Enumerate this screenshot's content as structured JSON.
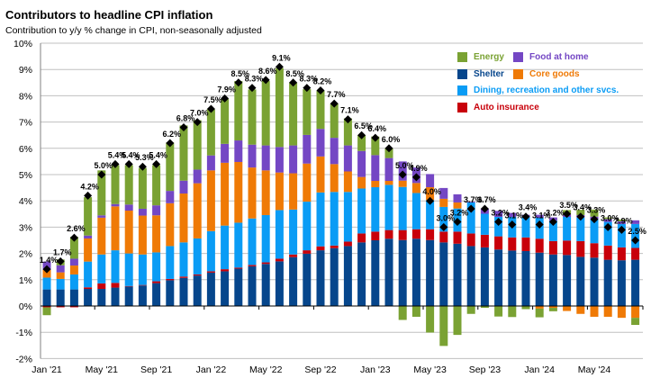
{
  "chart_data": {
    "type": "bar",
    "stacked": true,
    "title": "Contributors to headline CPI inflation",
    "subtitle": "Contribution to y/y % change in CPI, non-seasonally adjusted",
    "ylim": [
      -2,
      10
    ],
    "yticks": [
      "-2%",
      "-1%",
      "0%",
      "1%",
      "2%",
      "3%",
      "4%",
      "5%",
      "6%",
      "7%",
      "8%",
      "9%",
      "10%"
    ],
    "grid": true,
    "legend_position": "top-right",
    "x_tick_labels": [
      "Jan '21",
      "May '21",
      "Sep '21",
      "Jan '22",
      "May '22",
      "Sep '22",
      "Jan '23",
      "May '23",
      "Sep '23",
      "Jan '24",
      "May '24"
    ],
    "categories": [
      "Jan '21",
      "Feb '21",
      "Mar '21",
      "Apr '21",
      "May '21",
      "Jun '21",
      "Jul '21",
      "Aug '21",
      "Sep '21",
      "Oct '21",
      "Nov '21",
      "Dec '21",
      "Jan '22",
      "Feb '22",
      "Mar '22",
      "Apr '22",
      "May '22",
      "Jun '22",
      "Jul '22",
      "Aug '22",
      "Sep '22",
      "Oct '22",
      "Nov '22",
      "Dec '22",
      "Jan '23",
      "Feb '23",
      "Mar '23",
      "Apr '23",
      "May '23",
      "Jun '23",
      "Jul '23",
      "Aug '23",
      "Sep '23",
      "Oct '23",
      "Nov '23",
      "Dec '23",
      "Jan '24",
      "Feb '24",
      "Mar '24",
      "Apr '24",
      "May '24",
      "Jun '24",
      "Jul '24",
      "Aug '24"
    ],
    "series": [
      {
        "name": "Shelter",
        "color": "#06468c",
        "values": [
          0.63,
          0.63,
          0.63,
          0.65,
          0.65,
          0.7,
          0.74,
          0.78,
          0.87,
          0.98,
          1.07,
          1.16,
          1.27,
          1.32,
          1.42,
          1.51,
          1.6,
          1.7,
          1.86,
          1.99,
          2.12,
          2.2,
          2.28,
          2.42,
          2.5,
          2.56,
          2.51,
          2.56,
          2.51,
          2.42,
          2.37,
          2.28,
          2.23,
          2.15,
          2.11,
          2.09,
          2.03,
          1.96,
          1.94,
          1.87,
          1.84,
          1.76,
          1.74,
          1.76
        ]
      },
      {
        "name": "Auto insurance",
        "color": "#c8000a",
        "values": [
          -0.05,
          -0.05,
          -0.05,
          0.06,
          0.21,
          0.18,
          0.02,
          0.02,
          0.07,
          0.05,
          0.05,
          0.04,
          0.05,
          0.08,
          0.04,
          0.05,
          0.06,
          0.1,
          0.1,
          0.13,
          0.15,
          0.1,
          0.17,
          0.34,
          0.33,
          0.33,
          0.38,
          0.36,
          0.41,
          0.41,
          0.46,
          0.48,
          0.48,
          0.5,
          0.5,
          0.52,
          0.53,
          0.51,
          0.55,
          0.6,
          0.55,
          0.54,
          0.49,
          0.45
        ]
      },
      {
        "name": "Dining, recreation and other svcs.",
        "color": "#0a9cf5",
        "values": [
          0.45,
          0.4,
          0.57,
          0.98,
          1.1,
          1.24,
          1.24,
          1.16,
          1.1,
          1.25,
          1.3,
          1.37,
          1.53,
          1.66,
          1.71,
          1.77,
          1.8,
          1.85,
          1.71,
          1.85,
          2.05,
          2.04,
          1.89,
          1.71,
          1.69,
          1.72,
          1.64,
          1.38,
          1.11,
          0.94,
          0.88,
          1.18,
          0.8,
          0.74,
          0.78,
          0.79,
          0.8,
          0.78,
          0.9,
          0.9,
          0.92,
          0.9,
          0.89,
          0.91
        ]
      },
      {
        "name": "Core goods",
        "color": "#ef7a06",
        "values": [
          0.29,
          0.25,
          0.34,
          0.88,
          1.4,
          1.67,
          1.63,
          1.48,
          1.41,
          1.63,
          1.86,
          2.1,
          2.31,
          2.39,
          2.31,
          1.94,
          1.7,
          1.43,
          1.38,
          1.45,
          1.37,
          1.06,
          0.78,
          0.44,
          0.24,
          0.15,
          0.24,
          0.38,
          0.49,
          0.31,
          0.23,
          0.0,
          0.0,
          0.0,
          0.0,
          0.0,
          -0.1,
          -0.07,
          -0.19,
          -0.3,
          -0.41,
          -0.41,
          -0.45,
          -0.45
        ]
      },
      {
        "name": "Food at home",
        "color": "#7447c4",
        "values": [
          0.32,
          0.27,
          0.26,
          0.11,
          0.09,
          0.09,
          0.23,
          0.26,
          0.38,
          0.47,
          0.49,
          0.52,
          0.57,
          0.72,
          0.82,
          0.87,
          0.95,
          0.97,
          1.06,
          1.09,
          1.05,
          1.0,
          0.99,
          0.99,
          0.98,
          0.87,
          0.73,
          0.59,
          0.5,
          0.41,
          0.31,
          0.03,
          0.2,
          0.23,
          0.15,
          0.07,
          0.11,
          0.12,
          0.09,
          0.09,
          0.09,
          0.11,
          0.1,
          0.14
        ]
      },
      {
        "name": "Energy",
        "color": "#7aa233",
        "values": [
          -0.3,
          0.22,
          0.83,
          1.46,
          1.71,
          1.48,
          1.5,
          1.55,
          1.53,
          1.84,
          2.1,
          1.88,
          1.75,
          1.71,
          2.26,
          2.1,
          2.45,
          3.0,
          2.4,
          1.74,
          1.46,
          1.31,
          1.03,
          0.6,
          0.71,
          0.37,
          -0.53,
          -0.41,
          -1.01,
          -1.52,
          -1.1,
          -0.3,
          -0.07,
          -0.4,
          -0.42,
          -0.12,
          -0.33,
          -0.13,
          0.17,
          0.2,
          0.27,
          0.06,
          0.07,
          -0.27
        ]
      }
    ],
    "headline": {
      "values": [
        1.4,
        1.7,
        2.6,
        4.2,
        5.0,
        5.4,
        5.4,
        5.3,
        5.4,
        6.2,
        6.8,
        7.0,
        7.5,
        7.9,
        8.5,
        8.3,
        8.6,
        9.1,
        8.5,
        8.3,
        8.2,
        7.7,
        7.1,
        6.5,
        6.4,
        6.0,
        5.0,
        4.9,
        4.0,
        3.0,
        3.2,
        3.7,
        3.7,
        3.2,
        3.1,
        3.4,
        3.1,
        3.2,
        3.5,
        3.4,
        3.3,
        3.0,
        2.9,
        2.5
      ],
      "labels": [
        "1.4%",
        "1.7%",
        "2.6%",
        "4.2%",
        "5.0%",
        "5.4%",
        "5.4%",
        "5.3%",
        "5.4%",
        "6.2%",
        "6.8%",
        "7.0%",
        "7.5%",
        "7.9%",
        "8.5%",
        "8.3%",
        "8.6%",
        "9.1%",
        "8.5%",
        "8.3%",
        "8.2%",
        "7.7%",
        "7.1%",
        "6.5%",
        "6.4%",
        "6.0%",
        "5.0%",
        "4.9%",
        "4.0%",
        "3.0%",
        "3.2%",
        "3.7%",
        "3.7%",
        "3.2%",
        "3.1%",
        "3.4%",
        "3.1%",
        "3.2%",
        "3.5%",
        "3.4%",
        "3.3%",
        "3.0%",
        "2.9%",
        "2.5%"
      ]
    }
  },
  "legend": [
    {
      "label": "Energy",
      "color": "#7aa233"
    },
    {
      "label": "Food at home",
      "color": "#7447c4"
    },
    {
      "label": "Shelter",
      "color": "#06468c"
    },
    {
      "label": "Core goods",
      "color": "#ef7a06"
    },
    {
      "label": "Dining, recreation and other svcs.",
      "color": "#0a9cf5"
    },
    {
      "label": "Auto insurance",
      "color": "#c8000a"
    }
  ]
}
